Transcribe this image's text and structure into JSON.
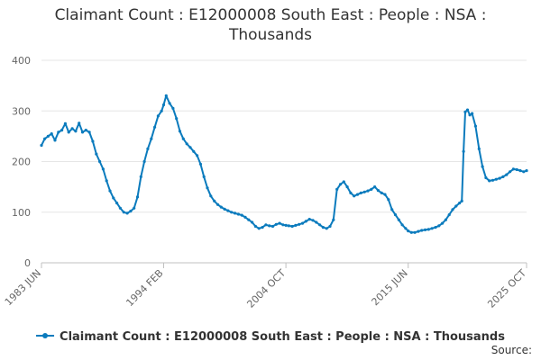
{
  "chart_data": {
    "type": "line",
    "title_lines": [
      "Claimant Count : E12000008 South East : People : NSA :",
      "Thousands"
    ],
    "xlabel": "",
    "ylabel": "",
    "x_tick_labels": [
      "1983 JUN",
      "1994 FEB",
      "2004 OCT",
      "2015 JUN",
      "2025 OCT"
    ],
    "x_tick_years": [
      1983.42,
      1994.08,
      2004.75,
      2015.42,
      2025.75
    ],
    "xlim": [
      1983.42,
      2025.75
    ],
    "ylim": [
      0,
      400
    ],
    "y_ticks": [
      0,
      100,
      200,
      300,
      400
    ],
    "grid": "horizontal",
    "legend_position": "bottom",
    "series": [
      {
        "name": "Claimant Count : E12000008 South East : People : NSA : Thousands",
        "color": "#0b7bbd",
        "x": [
          1983.42,
          1983.7,
          1984.0,
          1984.3,
          1984.6,
          1984.9,
          1985.2,
          1985.5,
          1985.8,
          1986.1,
          1986.4,
          1986.7,
          1987.0,
          1987.3,
          1987.6,
          1987.9,
          1988.2,
          1988.5,
          1988.8,
          1989.1,
          1989.4,
          1989.7,
          1990.0,
          1990.3,
          1990.6,
          1990.9,
          1991.2,
          1991.5,
          1991.8,
          1992.1,
          1992.4,
          1992.7,
          1993.0,
          1993.3,
          1993.6,
          1993.9,
          1994.08,
          1994.3,
          1994.6,
          1994.9,
          1995.2,
          1995.5,
          1995.8,
          1996.1,
          1996.4,
          1996.7,
          1997.0,
          1997.3,
          1997.6,
          1997.9,
          1998.2,
          1998.5,
          1998.8,
          1999.1,
          1999.4,
          1999.7,
          2000.0,
          2000.3,
          2000.6,
          2000.9,
          2001.2,
          2001.5,
          2001.8,
          2002.1,
          2002.4,
          2002.7,
          2003.0,
          2003.3,
          2003.6,
          2003.9,
          2004.2,
          2004.5,
          2004.75,
          2005.0,
          2005.3,
          2005.6,
          2005.9,
          2006.2,
          2006.5,
          2006.8,
          2007.1,
          2007.4,
          2007.7,
          2008.0,
          2008.3,
          2008.6,
          2008.9,
          2009.2,
          2009.5,
          2009.8,
          2010.1,
          2010.4,
          2010.7,
          2011.0,
          2011.3,
          2011.6,
          2011.9,
          2012.2,
          2012.5,
          2012.8,
          2013.1,
          2013.4,
          2013.7,
          2014.0,
          2014.3,
          2014.6,
          2014.9,
          2015.2,
          2015.42,
          2015.7,
          2016.0,
          2016.3,
          2016.6,
          2016.9,
          2017.2,
          2017.5,
          2017.8,
          2018.1,
          2018.4,
          2018.7,
          2019.0,
          2019.3,
          2019.6,
          2019.9,
          2020.1,
          2020.25,
          2020.4,
          2020.6,
          2020.8,
          2021.0,
          2021.3,
          2021.6,
          2021.9,
          2022.2,
          2022.5,
          2022.8,
          2023.1,
          2023.4,
          2023.7,
          2024.0,
          2024.3,
          2024.6,
          2024.9,
          2025.2,
          2025.5,
          2025.75
        ],
        "y": [
          232,
          245,
          250,
          255,
          242,
          258,
          262,
          275,
          258,
          265,
          260,
          276,
          258,
          262,
          258,
          240,
          215,
          200,
          185,
          162,
          142,
          128,
          118,
          108,
          100,
          98,
          102,
          108,
          130,
          170,
          200,
          225,
          245,
          268,
          290,
          300,
          312,
          330,
          315,
          305,
          285,
          260,
          245,
          235,
          228,
          220,
          212,
          195,
          170,
          148,
          132,
          122,
          115,
          110,
          106,
          103,
          100,
          98,
          96,
          94,
          90,
          85,
          80,
          72,
          68,
          70,
          75,
          73,
          72,
          76,
          78,
          75,
          74,
          73,
          72,
          74,
          76,
          78,
          82,
          86,
          84,
          80,
          75,
          70,
          68,
          72,
          85,
          145,
          155,
          160,
          150,
          138,
          132,
          135,
          138,
          140,
          142,
          145,
          150,
          143,
          138,
          135,
          125,
          105,
          95,
          85,
          75,
          68,
          63,
          60,
          60,
          62,
          64,
          65,
          66,
          68,
          70,
          73,
          78,
          85,
          95,
          105,
          112,
          118,
          122,
          220,
          298,
          302,
          292,
          295,
          270,
          225,
          190,
          168,
          162,
          163,
          165,
          167,
          170,
          174,
          180,
          185,
          184,
          182,
          180,
          182
        ]
      }
    ]
  },
  "source_label": "Source:"
}
